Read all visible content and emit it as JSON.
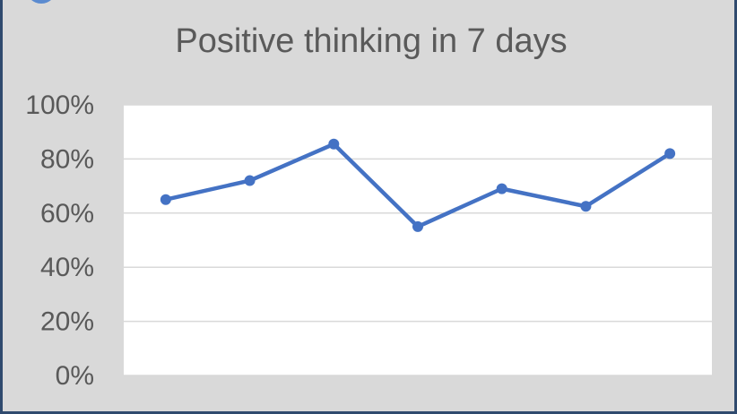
{
  "chart_data": {
    "type": "line",
    "title": "Positive thinking in 7 days",
    "xlabel": "",
    "ylabel": "",
    "x": [
      1,
      2,
      3,
      4,
      5,
      6,
      7
    ],
    "series": [
      {
        "values": [
          0.65,
          0.72,
          0.855,
          0.55,
          0.69,
          0.625,
          0.82
        ]
      }
    ],
    "ylim": [
      0,
      1
    ],
    "y_ticks": [
      "100%",
      "80%",
      "60%",
      "40%",
      "20%",
      "0%"
    ],
    "grid": true,
    "legend": "none",
    "colors": {
      "line": "#4472c4",
      "grid": "#d9d9d9",
      "plot_bg": "#ffffff",
      "outer_bg": "#d9d9d9"
    }
  }
}
